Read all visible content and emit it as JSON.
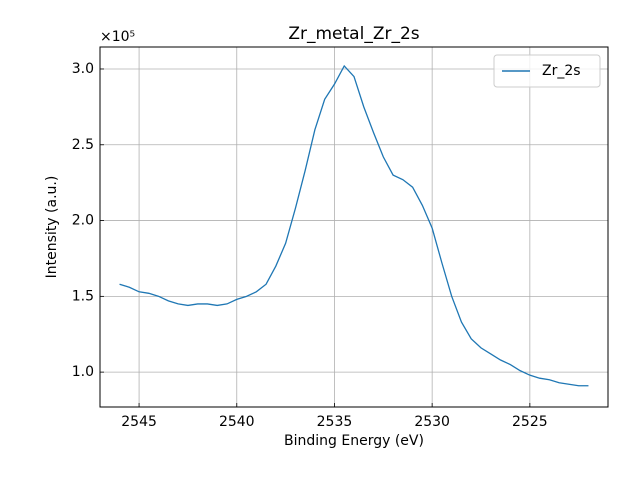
{
  "chart_data": {
    "type": "line",
    "title": "Zr_metal_Zr_2s",
    "xlabel": "Binding Energy (eV)",
    "ylabel": "Intensity (a.u.)",
    "y_offset_label": "×10⁵",
    "x": [
      2546,
      2545.5,
      2545,
      2544.5,
      2544,
      2543.5,
      2543,
      2542.5,
      2542,
      2541.5,
      2541,
      2540.5,
      2540,
      2539.5,
      2539,
      2538.5,
      2538,
      2537.5,
      2537,
      2536.5,
      2536,
      2535.5,
      2535,
      2534.5,
      2534,
      2533.5,
      2533,
      2532.5,
      2532,
      2531.5,
      2531,
      2530.5,
      2530,
      2529.5,
      2529,
      2528.5,
      2528,
      2527.5,
      2527,
      2526.5,
      2526,
      2525.5,
      2525,
      2524.5,
      2524,
      2523.5,
      2523,
      2522.5,
      2522
    ],
    "series": [
      {
        "name": "Zr_2s",
        "color": "#1f77b4",
        "values": [
          1.58,
          1.56,
          1.53,
          1.52,
          1.5,
          1.47,
          1.45,
          1.44,
          1.45,
          1.45,
          1.44,
          1.45,
          1.48,
          1.5,
          1.53,
          1.58,
          1.7,
          1.85,
          2.08,
          2.33,
          2.6,
          2.8,
          2.9,
          3.02,
          2.95,
          2.75,
          2.58,
          2.42,
          2.3,
          2.27,
          2.22,
          2.1,
          1.95,
          1.72,
          1.5,
          1.33,
          1.22,
          1.16,
          1.12,
          1.08,
          1.05,
          1.01,
          0.98,
          0.96,
          0.95,
          0.93,
          0.92,
          0.91,
          0.91
        ]
      }
    ],
    "xlim": [
      2547,
      2521
    ],
    "xticks": [
      2545,
      2540,
      2535,
      2530,
      2525
    ],
    "ylim": [
      0.77,
      3.145
    ],
    "yticks": [
      {
        "value": 1.0,
        "label": "1.0"
      },
      {
        "value": 1.5,
        "label": "1.5"
      },
      {
        "value": 2.0,
        "label": "2.0"
      },
      {
        "value": 2.5,
        "label": "2.5"
      },
      {
        "value": 3.0,
        "label": "3.0"
      }
    ],
    "grid": true,
    "legend": "upper right"
  }
}
